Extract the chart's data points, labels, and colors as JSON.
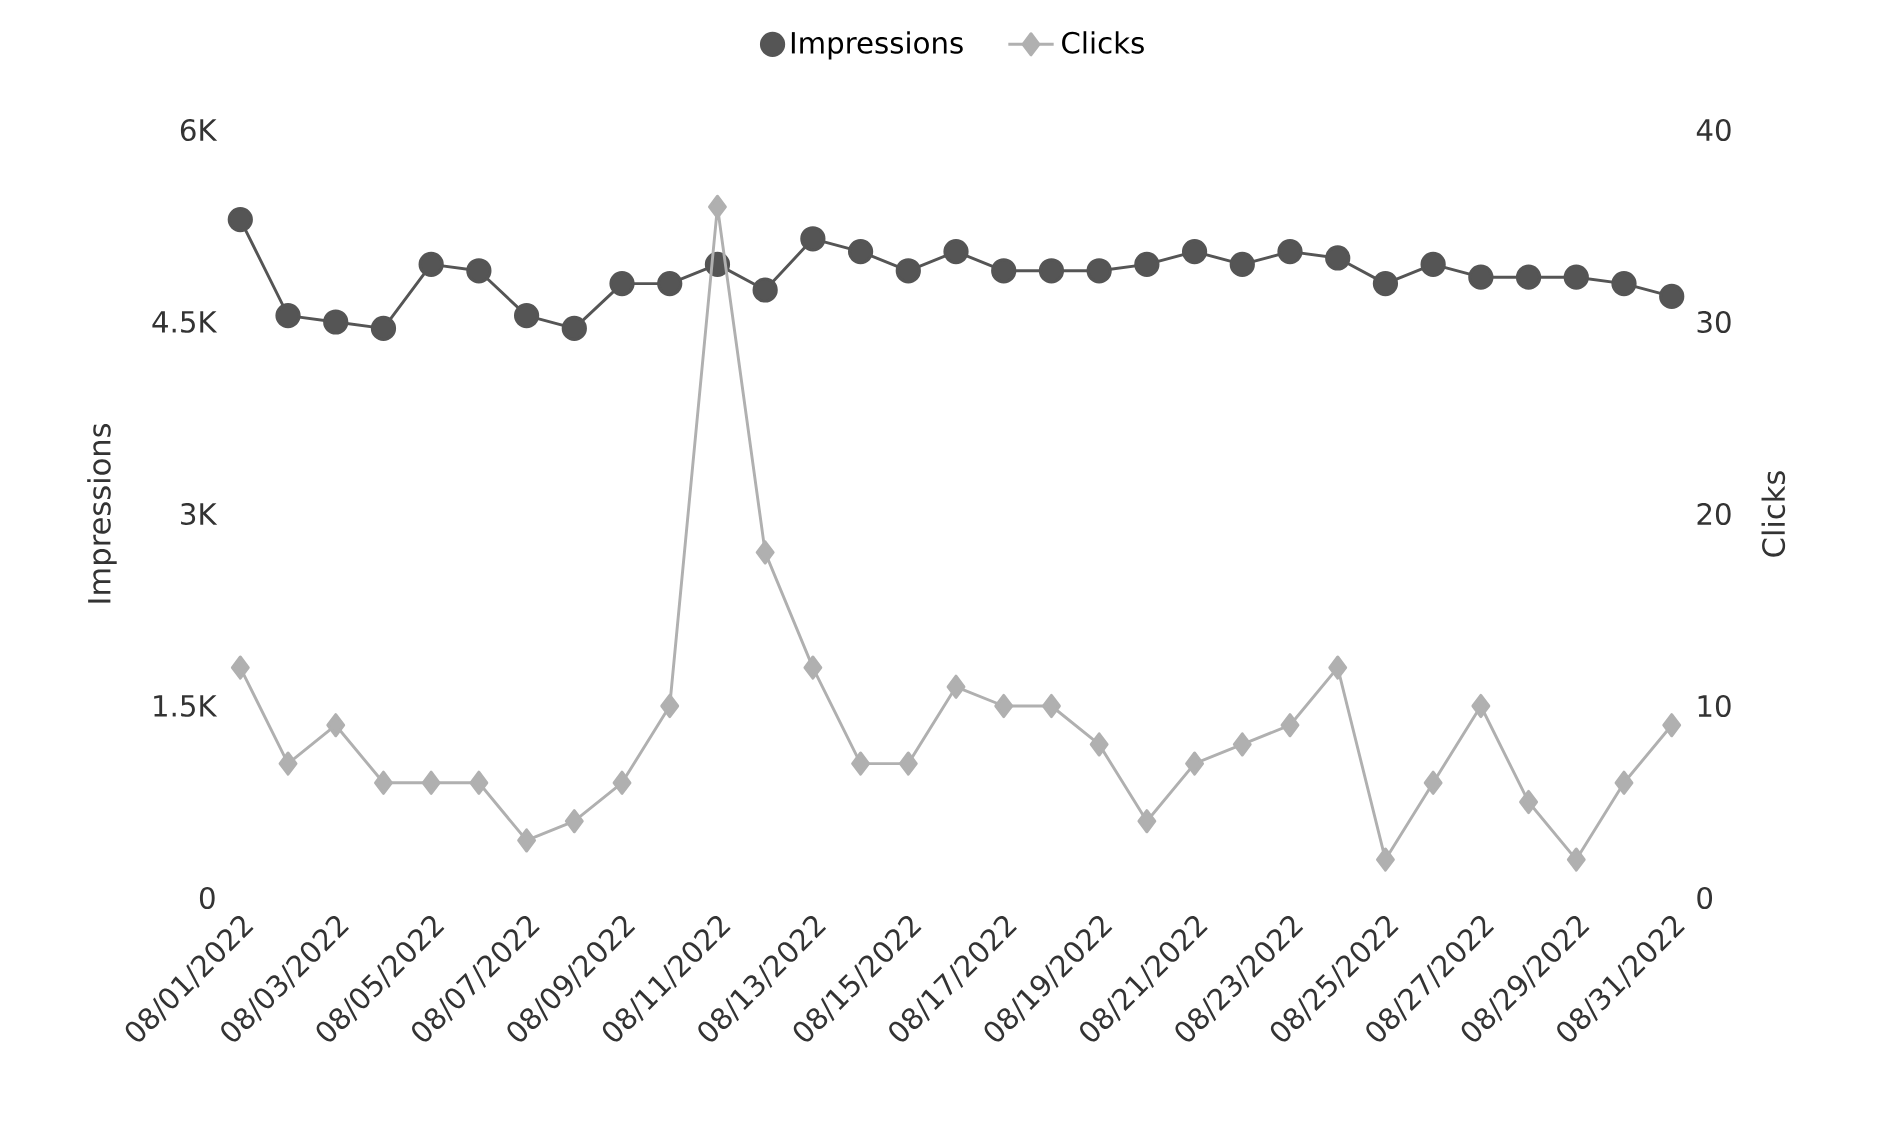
{
  "chart_data": {
    "type": "line",
    "categories": [
      "08/01/2022",
      null,
      "08/03/2022",
      null,
      "08/05/2022",
      null,
      "08/07/2022",
      null,
      "08/09/2022",
      null,
      "08/11/2022",
      null,
      "08/13/2022",
      null,
      "08/15/2022",
      null,
      "08/17/2022",
      null,
      "08/19/2022",
      null,
      "08/21/2022",
      null,
      "08/23/2022",
      null,
      "08/25/2022",
      null,
      "08/27/2022",
      null,
      "08/29/2022",
      null,
      "08/31/2022"
    ],
    "ylabel": "Impressions",
    "y2label": "Clicks",
    "ylim": [
      0,
      6000
    ],
    "yticks": [
      0,
      {
        "value": 1500,
        "label": "1.5K"
      },
      {
        "value": 3000,
        "label": "3K"
      },
      {
        "value": 4500,
        "label": "4.5K"
      },
      {
        "value": 6000,
        "label": "6K"
      }
    ],
    "y2lim": [
      0,
      40
    ],
    "y2ticks": [
      0,
      10,
      20,
      30,
      40
    ],
    "legend": "top",
    "grid": false,
    "series": [
      {
        "name": "Impressions",
        "color": "#555555",
        "marker": "circle",
        "values": [
          5300,
          4550,
          4500,
          4450,
          4950,
          4900,
          4550,
          4450,
          4800,
          4800,
          4950,
          4750,
          5150,
          5050,
          4900,
          5050,
          4900,
          4900,
          4900,
          4950,
          5050,
          4950,
          5050,
          5000,
          4800,
          4950,
          4850,
          4850,
          4850,
          4800,
          4700
        ]
      },
      {
        "name": "Clicks",
        "color": "#b0b0b0",
        "marker": "diamond",
        "axis": "y2",
        "values": [
          12,
          7,
          9,
          6,
          6,
          6,
          3,
          4,
          6,
          10,
          36,
          18,
          12,
          7,
          7,
          11,
          10,
          10,
          8,
          4,
          7,
          8,
          9,
          12,
          2,
          6,
          10,
          5,
          2,
          6,
          9
        ]
      }
    ]
  }
}
